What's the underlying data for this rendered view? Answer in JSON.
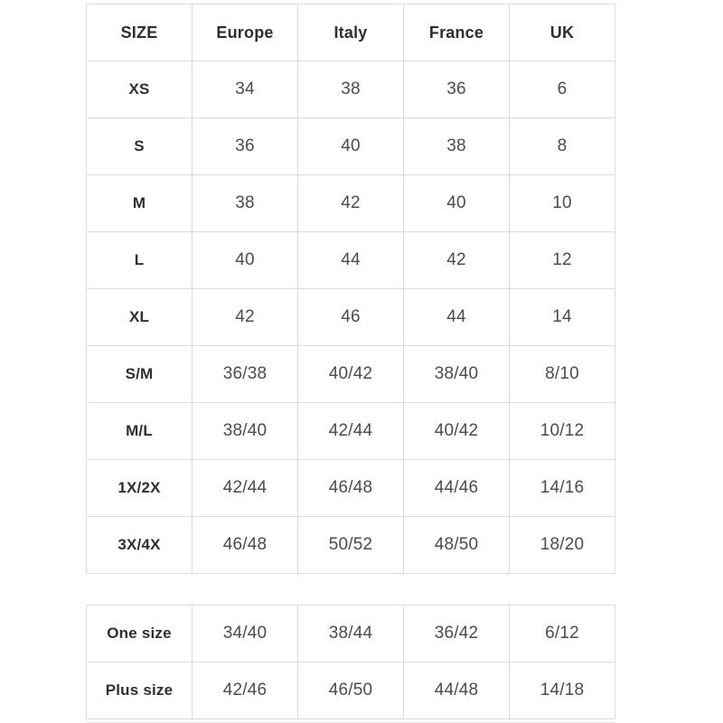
{
  "size_chart": {
    "columns": [
      "SIZE",
      "Europe",
      "Italy",
      "France",
      "UK"
    ],
    "rows": [
      {
        "size": "XS",
        "values": [
          "34",
          "38",
          "36",
          "6"
        ]
      },
      {
        "size": "S",
        "values": [
          "36",
          "40",
          "38",
          "8"
        ]
      },
      {
        "size": "M",
        "values": [
          "38",
          "42",
          "40",
          "10"
        ]
      },
      {
        "size": "L",
        "values": [
          "40",
          "44",
          "42",
          "12"
        ]
      },
      {
        "size": "XL",
        "values": [
          "42",
          "46",
          "44",
          "14"
        ]
      },
      {
        "size": "S/M",
        "values": [
          "36/38",
          "40/42",
          "38/40",
          "8/10"
        ]
      },
      {
        "size": "M/L",
        "values": [
          "38/40",
          "42/44",
          "40/42",
          "10/12"
        ]
      },
      {
        "size": "1X/2X",
        "values": [
          "42/44",
          "46/48",
          "44/46",
          "14/16"
        ]
      },
      {
        "size": "3X/4X",
        "values": [
          "46/48",
          "50/52",
          "48/50",
          "18/20"
        ]
      }
    ]
  },
  "special_sizes_chart": {
    "rows": [
      {
        "size": "One size",
        "values": [
          "34/40",
          "38/44",
          "36/42",
          "6/12"
        ]
      },
      {
        "size": "Plus size",
        "values": [
          "42/46",
          "46/50",
          "44/48",
          "14/18"
        ]
      }
    ]
  },
  "colors": {
    "border": "#dbdbdb",
    "header_text": "#2e2e33",
    "value_text": "#4b4b50",
    "background": "#ffffff",
    "next_block_edge": "#e9e9e9"
  }
}
